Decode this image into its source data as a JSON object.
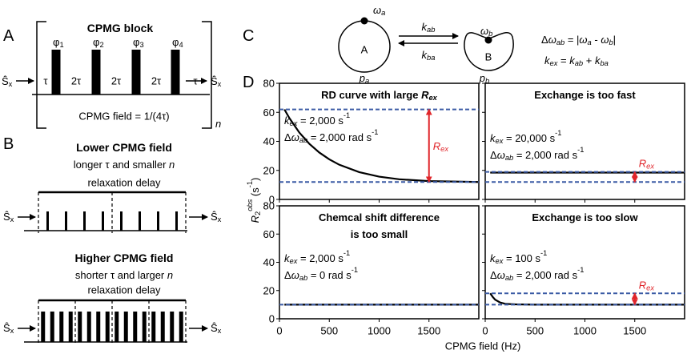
{
  "panel_a": {
    "label": "A",
    "title": "CPMG block",
    "s_in": [
      {
        "t": "Ŝ"
      },
      {
        "t": "x",
        "s": "sub"
      }
    ],
    "s_out": [
      {
        "t": "Ŝ"
      },
      {
        "t": "x",
        "s": "sub"
      }
    ],
    "phases": [
      [
        {
          "t": "φ"
        },
        {
          "t": "1",
          "s": "sub"
        }
      ],
      [
        {
          "t": "φ"
        },
        {
          "t": "2",
          "s": "sub"
        }
      ],
      [
        {
          "t": "φ"
        },
        {
          "t": "3",
          "s": "sub"
        }
      ],
      [
        {
          "t": "φ"
        },
        {
          "t": "4",
          "s": "sub"
        }
      ]
    ],
    "delays": [
      "τ",
      "2τ",
      "2τ",
      "2τ",
      "τ"
    ],
    "field": "CPMG field = 1/(4τ)",
    "repeat": [
      {
        "t": "n",
        "s": "i"
      }
    ]
  },
  "panel_b": {
    "label": "B",
    "blocks": [
      {
        "title": "Lower CPMG field",
        "subtitle": [
          {
            "t": "longer τ and smaller "
          },
          {
            "t": "n",
            "s": "i"
          }
        ],
        "delay": "relaxation delay",
        "s_in": [
          {
            "t": "Ŝ"
          },
          {
            "t": "x",
            "s": "sub"
          }
        ],
        "s_out": [
          {
            "t": "Ŝ"
          },
          {
            "t": "x",
            "s": "sub"
          }
        ]
      },
      {
        "title": "Higher CPMG field",
        "subtitle": [
          {
            "t": "shorter τ and larger "
          },
          {
            "t": "n",
            "s": "i"
          }
        ],
        "delay": "relaxation delay",
        "s_in": [
          {
            "t": "Ŝ"
          },
          {
            "t": "x",
            "s": "sub"
          }
        ],
        "s_out": [
          {
            "t": "Ŝ"
          },
          {
            "t": "x",
            "s": "sub"
          }
        ]
      }
    ]
  },
  "panel_c": {
    "label": "C",
    "state_a": "A",
    "state_b": "B",
    "omega_a": [
      {
        "t": "ω",
        "s": "i"
      },
      {
        "t": "a",
        "s": "isub"
      }
    ],
    "omega_b": [
      {
        "t": "ω",
        "s": "i"
      },
      {
        "t": "b",
        "s": "isub"
      }
    ],
    "k_ab": [
      {
        "t": "k",
        "s": "i"
      },
      {
        "t": "ab",
        "s": "isub"
      }
    ],
    "k_ba": [
      {
        "t": "k",
        "s": "i"
      },
      {
        "t": "ba",
        "s": "isub"
      }
    ],
    "p_a": [
      {
        "t": "p",
        "s": "i"
      },
      {
        "t": "a",
        "s": "isub"
      }
    ],
    "p_b": [
      {
        "t": "p",
        "s": "i"
      },
      {
        "t": "b",
        "s": "isub"
      }
    ],
    "delta_eq": [
      {
        "t": "Δ"
      },
      {
        "t": "ω",
        "s": "i"
      },
      {
        "t": "ab",
        "s": "isub"
      },
      {
        "t": " = |"
      },
      {
        "t": "ω",
        "s": "i"
      },
      {
        "t": "a",
        "s": "isub"
      },
      {
        "t": " - "
      },
      {
        "t": "ω",
        "s": "i"
      },
      {
        "t": "b",
        "s": "isub"
      },
      {
        "t": "|"
      }
    ],
    "kex_eq": [
      {
        "t": "k",
        "s": "i"
      },
      {
        "t": "ex",
        "s": "isub"
      },
      {
        "t": " = "
      },
      {
        "t": "k",
        "s": "i"
      },
      {
        "t": "ab",
        "s": "isub"
      },
      {
        "t": " + "
      },
      {
        "t": "k",
        "s": "i"
      },
      {
        "t": "ba",
        "s": "isub"
      }
    ]
  },
  "panel_d": {
    "label": "D",
    "x_label": "CPMG field (Hz)",
    "y_label": [
      {
        "t": "R",
        "s": "i"
      },
      {
        "t": "2",
        "s": "sub"
      },
      {
        "t": "obs",
        "s": "isup"
      },
      {
        "t": " (s"
      },
      {
        "t": "-1",
        "s": "sup"
      },
      {
        "t": ")"
      }
    ]
  },
  "chart_data": [
    {
      "type": "line",
      "title": [
        [
          {
            "t": "RD curve with large "
          },
          {
            "t": "R",
            "s": "i"
          },
          {
            "t": "ex",
            "s": "isub"
          }
        ]
      ],
      "notes": [
        [
          {
            "t": "k",
            "s": "i"
          },
          {
            "t": "ex",
            "s": "isub"
          },
          {
            "t": " = 2,000 s"
          },
          {
            "t": "-1",
            "s": "sup"
          }
        ],
        [
          {
            "t": "Δ"
          },
          {
            "t": "ω",
            "s": "i"
          },
          {
            "t": "ab",
            "s": "isub"
          },
          {
            "t": " = 2,000 rad s"
          },
          {
            "t": "-1",
            "s": "sup"
          }
        ]
      ],
      "x": [
        50,
        100,
        200,
        300,
        400,
        500,
        600,
        800,
        1000,
        1200,
        1500,
        2000
      ],
      "values": [
        62,
        56,
        46,
        38.3,
        32.3,
        27.6,
        23.9,
        18.8,
        15.7,
        13.9,
        12.6,
        12
      ],
      "color": "#000000",
      "xlim": [
        0,
        2000
      ],
      "xticks": [
        0,
        500,
        1000,
        1500
      ],
      "xtick_labels": false,
      "ylim": [
        0,
        80
      ],
      "yticks": [
        0,
        20,
        40,
        60,
        80
      ],
      "ytick_labels": true,
      "ref_lines": [
        62,
        12
      ],
      "ref_color": "#3b5ba5",
      "rex": {
        "x": 1500,
        "from": 12,
        "to": 62,
        "label": [
          {
            "t": "R",
            "s": "i"
          },
          {
            "t": "ex",
            "s": "isub"
          }
        ],
        "color": "#e0252a",
        "label_pos": "right"
      }
    },
    {
      "type": "line",
      "title": [
        [
          {
            "t": "Exchange is too fast"
          }
        ]
      ],
      "notes": [
        [
          {
            "t": "k",
            "s": "i"
          },
          {
            "t": "ex",
            "s": "isub"
          },
          {
            "t": " = 20,000 s"
          },
          {
            "t": "-1",
            "s": "sup"
          }
        ],
        [
          {
            "t": "Δ"
          },
          {
            "t": "ω",
            "s": "i"
          },
          {
            "t": "ab",
            "s": "isub"
          },
          {
            "t": " = 2,000 rad s"
          },
          {
            "t": "-1",
            "s": "sup"
          }
        ]
      ],
      "x": [
        50,
        2000
      ],
      "values": [
        18.5,
        18.5
      ],
      "color": "#000000",
      "xlim": [
        0,
        2000
      ],
      "xticks": [
        0,
        500,
        1000,
        1500
      ],
      "xtick_labels": false,
      "ylim": [
        0,
        80
      ],
      "yticks": [
        0,
        20,
        40,
        60,
        80
      ],
      "ytick_labels": false,
      "ref_lines": [
        19,
        12
      ],
      "ref_color": "#3b5ba5",
      "rex": {
        "x": 1500,
        "from": 12,
        "to": 19,
        "label": [
          {
            "t": "R",
            "s": "i"
          },
          {
            "t": "ex",
            "s": "isub"
          }
        ],
        "color": "#e0252a",
        "label_pos": "above"
      }
    },
    {
      "type": "line",
      "title": [
        [
          {
            "t": "Chemcal shift difference"
          }
        ],
        [
          {
            "t": "is too small"
          }
        ]
      ],
      "notes": [
        [
          {
            "t": "k",
            "s": "i"
          },
          {
            "t": "ex",
            "s": "isub"
          },
          {
            "t": " = 2,000 s"
          },
          {
            "t": "-1",
            "s": "sup"
          }
        ],
        [
          {
            "t": "Δ"
          },
          {
            "t": "ω",
            "s": "i"
          },
          {
            "t": "ab",
            "s": "isub"
          },
          {
            "t": " = 0 rad s"
          },
          {
            "t": "-1",
            "s": "sup"
          }
        ]
      ],
      "x": [
        50,
        2000
      ],
      "values": [
        10,
        10
      ],
      "color": "#000000",
      "xlim": [
        0,
        2000
      ],
      "xticks": [
        0,
        500,
        1000,
        1500
      ],
      "xtick_labels": true,
      "ylim": [
        0,
        80
      ],
      "yticks": [
        0,
        20,
        40,
        60,
        80
      ],
      "ytick_labels": true,
      "ref_lines": [
        10
      ],
      "ref_color": "#3b5ba5"
    },
    {
      "type": "line",
      "title": [
        [
          {
            "t": "Exchange is too slow"
          }
        ]
      ],
      "notes": [
        [
          {
            "t": "k",
            "s": "i"
          },
          {
            "t": "ex",
            "s": "isub"
          },
          {
            "t": " = 100 s"
          },
          {
            "t": "-1",
            "s": "sup"
          }
        ],
        [
          {
            "t": "Δ"
          },
          {
            "t": "ω",
            "s": "i"
          },
          {
            "t": "ab",
            "s": "isub"
          },
          {
            "t": " = 2,000 rad s"
          },
          {
            "t": "-1",
            "s": "sup"
          }
        ]
      ],
      "x": [
        50,
        75,
        100,
        150,
        200,
        300,
        500,
        2000
      ],
      "values": [
        18,
        15.5,
        13.5,
        11.5,
        10.6,
        10.2,
        10,
        10
      ],
      "color": "#000000",
      "xlim": [
        0,
        2000
      ],
      "xticks": [
        0,
        500,
        1000,
        1500
      ],
      "xtick_labels": true,
      "ylim": [
        0,
        80
      ],
      "yticks": [
        0,
        20,
        40,
        60,
        80
      ],
      "ytick_labels": false,
      "ref_lines": [
        18,
        10
      ],
      "ref_color": "#3b5ba5",
      "rex": {
        "x": 1500,
        "from": 10,
        "to": 18,
        "label": [
          {
            "t": "R",
            "s": "i"
          },
          {
            "t": "ex",
            "s": "isub"
          }
        ],
        "color": "#e0252a",
        "label_pos": "above"
      }
    }
  ]
}
